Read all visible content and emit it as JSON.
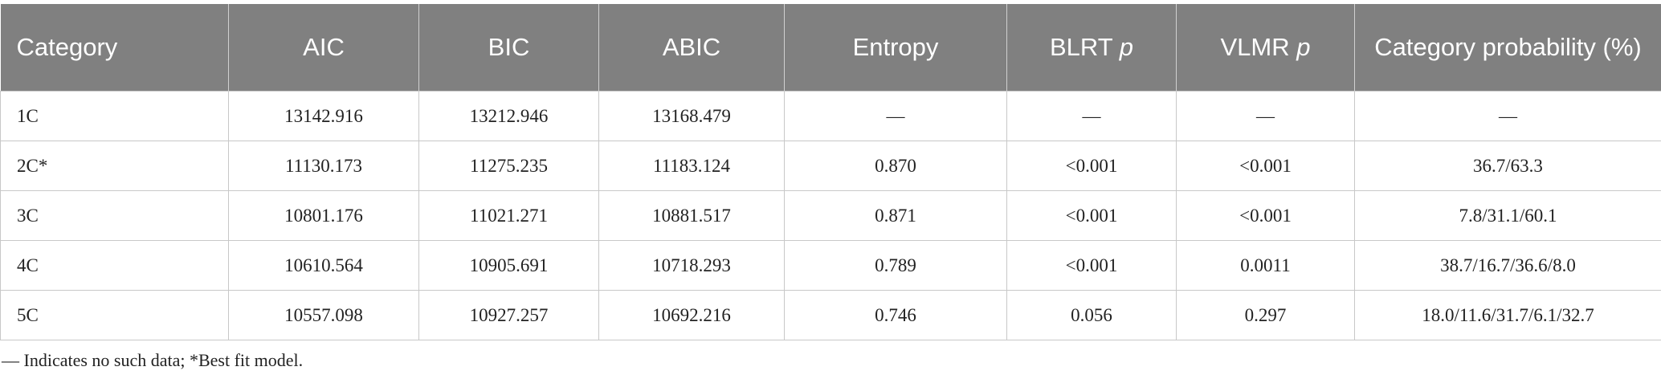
{
  "table": {
    "headers": [
      "Category",
      "AIC",
      "BIC",
      "ABIC",
      "Entropy",
      {
        "text": "BLRT",
        "italic": "p"
      },
      {
        "text": "VLMR",
        "italic": "p"
      },
      "Category probability (%)"
    ],
    "rows": [
      [
        "1C",
        "13142.916",
        "13212.946",
        "13168.479",
        "—",
        "—",
        "—",
        "—"
      ],
      [
        "2C*",
        "11130.173",
        "11275.235",
        "11183.124",
        "0.870",
        "<0.001",
        "<0.001",
        "36.7/63.3"
      ],
      [
        "3C",
        "10801.176",
        "11021.271",
        "10881.517",
        "0.871",
        "<0.001",
        "<0.001",
        "7.8/31.1/60.1"
      ],
      [
        "4C",
        "10610.564",
        "10905.691",
        "10718.293",
        "0.789",
        "<0.001",
        "0.0011",
        "38.7/16.7/36.6/8.0"
      ],
      [
        "5C",
        "10557.098",
        "10927.257",
        "10692.216",
        "0.746",
        "0.056",
        "0.297",
        "18.0/11.6/31.7/6.1/32.7"
      ]
    ]
  },
  "footnote": "— Indicates no such data; *Best fit model."
}
